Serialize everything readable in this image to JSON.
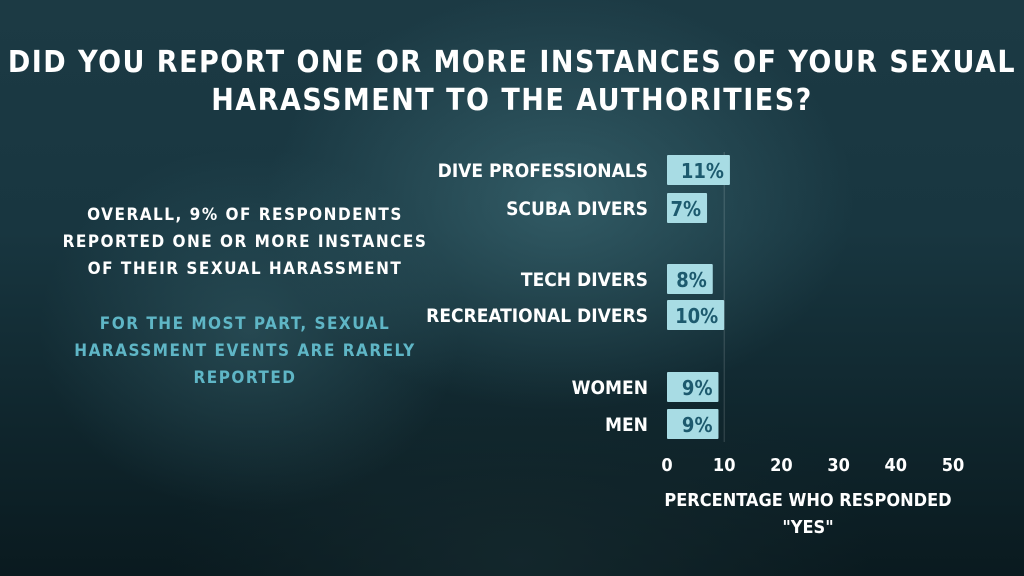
{
  "title_lines": [
    "DID YOU REPORT ONE OR MORE INSTANCES OF YOUR SEXUAL",
    "HARASSMENT TO THE AUTHORITIES?"
  ],
  "notes": {
    "primary": "OVERALL, 9% OF RESPONDENTS REPORTED ONE OR MORE INSTANCES OF THEIR SEXUAL HARASSMENT",
    "secondary": "FOR THE MOST PART, SEXUAL HARASSMENT EVENTS ARE RARELY REPORTED"
  },
  "colors": {
    "bar": "#a8dce4",
    "bar_text": "#1d5a6e",
    "accent_text": "#5fb6c6"
  },
  "chart_data": {
    "type": "bar",
    "orientation": "horizontal",
    "categories": [
      "DIVE PROFESSIONALS",
      "SCUBA DIVERS",
      "TECH DIVERS",
      "RECREATIONAL DIVERS",
      "WOMEN",
      "MEN"
    ],
    "groups": [
      [
        0,
        1
      ],
      [
        2,
        3
      ],
      [
        4,
        5
      ]
    ],
    "values": [
      11,
      7,
      8,
      10,
      9,
      9
    ],
    "data_labels": [
      "11%",
      "7%",
      "8%",
      "10%",
      "9%",
      "9%"
    ],
    "xlim": [
      0,
      50
    ],
    "xticks": [
      0,
      10,
      20,
      30,
      40,
      50
    ],
    "xlabel_lines": [
      "PERCENTAGE WHO RESPONDED",
      "\"YES\""
    ],
    "grid": false
  }
}
